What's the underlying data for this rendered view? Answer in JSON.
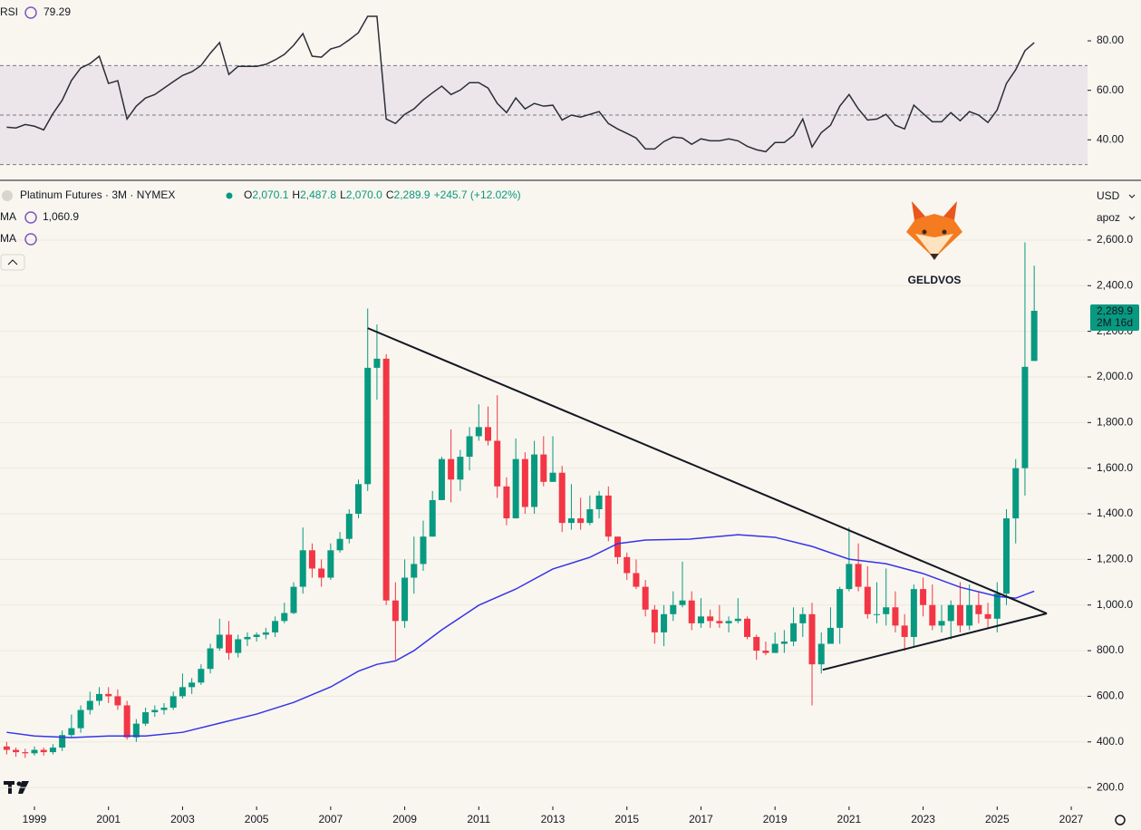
{
  "chart_data": [
    {
      "type": "line",
      "title": "RSI",
      "color": "#2a2e39",
      "levels": [
        70,
        50,
        30
      ],
      "band_color": "#7e57c2",
      "xlim": [
        1998.07,
        2027.44
      ],
      "ylim": [
        24,
        96.5
      ],
      "yticks": [
        {
          "value": 80,
          "label": "80.00"
        },
        {
          "value": 60,
          "label": "60.00"
        },
        {
          "value": 40,
          "label": "40.00"
        }
      ],
      "x": [
        1998.25,
        1998.5,
        1998.75,
        1999,
        1999.25,
        1999.5,
        1999.75,
        2000,
        2000.25,
        2000.5,
        2000.75,
        2001,
        2001.25,
        2001.5,
        2001.75,
        2002,
        2002.25,
        2002.5,
        2002.75,
        2003,
        2003.25,
        2003.5,
        2003.75,
        2004,
        2004.25,
        2004.5,
        2004.75,
        2005,
        2005.25,
        2005.5,
        2005.75,
        2006,
        2006.25,
        2006.5,
        2006.75,
        2007,
        2007.25,
        2007.5,
        2007.75,
        2008,
        2008.25,
        2008.5,
        2008.75,
        2009,
        2009.25,
        2009.5,
        2009.75,
        2010,
        2010.25,
        2010.5,
        2010.75,
        2011,
        2011.25,
        2011.5,
        2011.75,
        2012,
        2012.25,
        2012.5,
        2012.75,
        2013,
        2013.25,
        2013.5,
        2013.75,
        2014,
        2014.25,
        2014.5,
        2014.75,
        2015,
        2015.25,
        2015.5,
        2015.75,
        2016,
        2016.25,
        2016.5,
        2016.75,
        2017,
        2017.25,
        2017.5,
        2017.75,
        2018,
        2018.25,
        2018.5,
        2018.75,
        2019,
        2019.25,
        2019.5,
        2019.75,
        2020,
        2020.25,
        2020.5,
        2020.75,
        2021,
        2021.25,
        2021.5,
        2021.75,
        2022,
        2022.25,
        2022.5,
        2022.75,
        2023,
        2023.25,
        2023.5,
        2023.75,
        2024,
        2024.25,
        2024.5,
        2024.75,
        2025,
        2025.25,
        2025.5,
        2025.75,
        2026
      ],
      "values": [
        45.1,
        44.8,
        46.2,
        45.5,
        44.0,
        50.6,
        56.0,
        64.0,
        69.0,
        70.8,
        73.8,
        62.8,
        63.9,
        48.4,
        53.6,
        56.9,
        58.3,
        60.9,
        63.5,
        66.0,
        67.5,
        70.0,
        75.0,
        79.3,
        66.4,
        69.7,
        69.7,
        69.7,
        70.5,
        72.3,
        74.5,
        78.2,
        82.9,
        73.8,
        73.4,
        76.7,
        77.8,
        80.4,
        83.3,
        89.9,
        89.9,
        48.4,
        46.6,
        50.3,
        52.5,
        56.1,
        59.0,
        61.7,
        58.3,
        60.1,
        63.1,
        63.1,
        60.9,
        54.7,
        51.0,
        56.9,
        52.5,
        54.7,
        53.6,
        54.0,
        48.0,
        50.0,
        49.2,
        50.3,
        51.4,
        46.6,
        44.4,
        42.6,
        40.7,
        36.3,
        36.3,
        39.3,
        41.1,
        40.7,
        38.2,
        40.4,
        39.6,
        39.6,
        40.4,
        39.6,
        37.4,
        36.0,
        35.2,
        38.9,
        38.9,
        41.8,
        48.4,
        37.1,
        42.9,
        45.9,
        53.6,
        58.3,
        52.5,
        48.0,
        48.4,
        50.3,
        45.9,
        44.4,
        54.0,
        50.6,
        47.3,
        47.3,
        51.0,
        47.7,
        51.4,
        50.0,
        47.0,
        52.1,
        62.8,
        68.3,
        76.0,
        79.29
      ]
    },
    {
      "type": "candlestick",
      "title": "Platinum Futures · 3M · NYMEX",
      "up_color": "#089981",
      "down_color": "#f23645",
      "grid": true,
      "xlim": [
        1998.07,
        2027.44
      ],
      "xticks": [
        1999,
        2001,
        2003,
        2005,
        2007,
        2009,
        2011,
        2013,
        2015,
        2017,
        2019,
        2021,
        2023,
        2025,
        2027
      ],
      "ylim": [
        117,
        2858
      ],
      "yticks": [
        {
          "value": 2600,
          "label": "2,600.0"
        },
        {
          "value": 2400,
          "label": "2,400.0"
        },
        {
          "value": 2200,
          "label": "2,200.0"
        },
        {
          "value": 2000,
          "label": "2,000.0"
        },
        {
          "value": 1800,
          "label": "1,800.0"
        },
        {
          "value": 1600,
          "label": "1,600.0"
        },
        {
          "value": 1400,
          "label": "1,400.0"
        },
        {
          "value": 1200,
          "label": "1,200.0"
        },
        {
          "value": 1000,
          "label": "1,000.0"
        },
        {
          "value": 800,
          "label": "800.0"
        },
        {
          "value": 600,
          "label": "600.0"
        },
        {
          "value": 400,
          "label": "400.0"
        },
        {
          "value": 200,
          "label": "200.0"
        }
      ],
      "x": [
        1998.25,
        1998.5,
        1998.75,
        1999,
        1999.25,
        1999.5,
        1999.75,
        2000,
        2000.25,
        2000.5,
        2000.75,
        2001,
        2001.25,
        2001.5,
        2001.75,
        2002,
        2002.25,
        2002.5,
        2002.75,
        2003,
        2003.25,
        2003.5,
        2003.75,
        2004,
        2004.25,
        2004.5,
        2004.75,
        2005,
        2005.25,
        2005.5,
        2005.75,
        2006,
        2006.25,
        2006.5,
        2006.75,
        2007,
        2007.25,
        2007.5,
        2007.75,
        2008,
        2008.25,
        2008.5,
        2008.75,
        2009,
        2009.25,
        2009.5,
        2009.75,
        2010,
        2010.25,
        2010.5,
        2010.75,
        2011,
        2011.25,
        2011.5,
        2011.75,
        2012,
        2012.25,
        2012.5,
        2012.75,
        2013,
        2013.25,
        2013.5,
        2013.75,
        2014,
        2014.25,
        2014.5,
        2014.75,
        2015,
        2015.25,
        2015.5,
        2015.75,
        2016,
        2016.25,
        2016.5,
        2016.75,
        2017,
        2017.25,
        2017.5,
        2017.75,
        2018,
        2018.25,
        2018.5,
        2018.75,
        2019,
        2019.25,
        2019.5,
        2019.75,
        2020,
        2020.25,
        2020.5,
        2020.75,
        2021,
        2021.25,
        2021.5,
        2021.75,
        2022,
        2022.25,
        2022.5,
        2022.75,
        2023,
        2023.25,
        2023.5,
        2023.75,
        2024,
        2024.25,
        2024.5,
        2024.75,
        2025,
        2025.25,
        2025.5,
        2025.75,
        2026
      ],
      "open": [
        380,
        365,
        355,
        350,
        365,
        355,
        375,
        430,
        460,
        540,
        580,
        610,
        600,
        560,
        420,
        480,
        530,
        540,
        550,
        600,
        640,
        660,
        720,
        810,
        870,
        790,
        850,
        860,
        870,
        880,
        930,
        965,
        1080,
        1240,
        1160,
        1120,
        1240,
        1290,
        1400,
        1530,
        2040,
        2080,
        1020,
        930,
        1120,
        1180,
        1300,
        1460,
        1640,
        1550,
        1650,
        1740,
        1780,
        1720,
        1520,
        1380,
        1640,
        1430,
        1660,
        1540,
        1580,
        1360,
        1380,
        1360,
        1420,
        1480,
        1300,
        1210,
        1140,
        1080,
        980,
        880,
        960,
        1000,
        1020,
        920,
        950,
        930,
        920,
        930,
        940,
        860,
        800,
        790,
        830,
        840,
        920,
        960,
        740,
        830,
        900,
        1070,
        1180,
        1080,
        960,
        960,
        990,
        910,
        860,
        1070,
        1000,
        910,
        930,
        1000,
        910,
        1000,
        960,
        940,
        1050,
        1380,
        1600,
        2070.1
      ],
      "high": [
        400,
        375,
        370,
        380,
        375,
        390,
        450,
        520,
        560,
        620,
        640,
        640,
        630,
        580,
        500,
        550,
        560,
        570,
        620,
        700,
        680,
        740,
        830,
        940,
        930,
        870,
        880,
        880,
        900,
        950,
        1010,
        1100,
        1340,
        1270,
        1200,
        1270,
        1320,
        1420,
        1550,
        2300,
        2230,
        2100,
        1100,
        1200,
        1300,
        1370,
        1500,
        1650,
        1770,
        1680,
        1780,
        1880,
        1870,
        1920,
        1560,
        1730,
        1670,
        1720,
        1740,
        1740,
        1610,
        1530,
        1470,
        1480,
        1500,
        1520,
        1300,
        1230,
        1200,
        1110,
        1000,
        1000,
        1060,
        1190,
        1060,
        1030,
        980,
        1000,
        950,
        1030,
        950,
        870,
        840,
        880,
        890,
        990,
        990,
        1010,
        880,
        990,
        1080,
        1340,
        1270,
        1170,
        1100,
        1160,
        1060,
        960,
        1090,
        1120,
        1090,
        1000,
        1020,
        1100,
        1090,
        1060,
        1010,
        1100,
        1420,
        1640,
        2590,
        2487.8
      ],
      "low": [
        345,
        335,
        330,
        340,
        340,
        345,
        360,
        420,
        440,
        520,
        560,
        570,
        540,
        410,
        400,
        470,
        510,
        520,
        540,
        590,
        610,
        650,
        700,
        800,
        760,
        770,
        820,
        840,
        850,
        860,
        920,
        960,
        1050,
        1120,
        1080,
        1110,
        1230,
        1270,
        1380,
        1500,
        1900,
        1000,
        760,
        900,
        1050,
        1150,
        1300,
        1460,
        1450,
        1500,
        1590,
        1720,
        1700,
        1470,
        1350,
        1380,
        1400,
        1400,
        1520,
        1540,
        1320,
        1330,
        1330,
        1350,
        1380,
        1280,
        1180,
        1110,
        1070,
        950,
        830,
        820,
        930,
        990,
        890,
        900,
        900,
        900,
        880,
        920,
        850,
        760,
        780,
        790,
        790,
        820,
        860,
        560,
        700,
        830,
        830,
        1060,
        1060,
        940,
        920,
        910,
        880,
        800,
        820,
        950,
        890,
        880,
        850,
        880,
        890,
        920,
        900,
        880,
        1000,
        1270,
        1480,
        2070
      ],
      "close": [
        365,
        355,
        350,
        365,
        355,
        375,
        430,
        460,
        540,
        580,
        610,
        600,
        560,
        420,
        480,
        530,
        540,
        550,
        600,
        640,
        660,
        720,
        810,
        870,
        790,
        850,
        860,
        870,
        880,
        930,
        965,
        1080,
        1240,
        1160,
        1120,
        1240,
        1290,
        1400,
        1530,
        2040,
        2080,
        1020,
        930,
        1120,
        1180,
        1300,
        1460,
        1640,
        1550,
        1650,
        1740,
        1780,
        1720,
        1520,
        1380,
        1640,
        1430,
        1660,
        1540,
        1580,
        1360,
        1380,
        1360,
        1420,
        1480,
        1300,
        1210,
        1140,
        1080,
        980,
        880,
        960,
        1000,
        1020,
        920,
        950,
        930,
        920,
        930,
        940,
        860,
        800,
        790,
        830,
        840,
        920,
        960,
        740,
        830,
        900,
        1070,
        1180,
        1080,
        960,
        960,
        990,
        910,
        860,
        1070,
        1000,
        910,
        930,
        1000,
        910,
        1000,
        960,
        940,
        1050,
        1380,
        1600,
        2044.2,
        2289.9
      ],
      "ohlc_prefixes": [
        "O",
        "H",
        "L",
        "C"
      ],
      "ohlc_labels": [
        "2,070.1",
        "2,487.8",
        "2,070.0",
        "2,289.9"
      ],
      "change_label": "+245.7 (+12.02%)",
      "ma": {
        "name": "MA",
        "color": "#3535e8",
        "value_label": "1,060.9",
        "x": [
          1998.25,
          1999,
          2000,
          2001,
          2002,
          2003,
          2004,
          2005,
          2006,
          2007,
          2007.75,
          2008.25,
          2008.75,
          2009.25,
          2010,
          2011,
          2012,
          2013,
          2014,
          2014.75,
          2015.5,
          2016.7,
          2018,
          2019,
          2020,
          2021,
          2022,
          2023,
          2024,
          2025,
          2025.5,
          2026
        ],
        "values": [
          442,
          426,
          419,
          426,
          426,
          442,
          482,
          522,
          573,
          641,
          710,
          740,
          755,
          800,
          891,
          999,
          1070,
          1158,
          1209,
          1269,
          1285,
          1289,
          1308,
          1297,
          1257,
          1201,
          1181,
          1138,
          1078,
          1038,
          1030,
          1060.9
        ]
      },
      "ma2_name": "MA",
      "trendlines": [
        {
          "x": [
            2008.0,
            2026.34
          ],
          "values": [
            2214,
            963
          ]
        },
        {
          "x": [
            2020.29,
            2026.34
          ],
          "values": [
            716,
            963
          ]
        }
      ],
      "last_price_label": "2,289.9",
      "countdown": "2M 16d",
      "currency": "USD",
      "scale_label": "apoz",
      "logo_text": "GELDVOS"
    }
  ]
}
